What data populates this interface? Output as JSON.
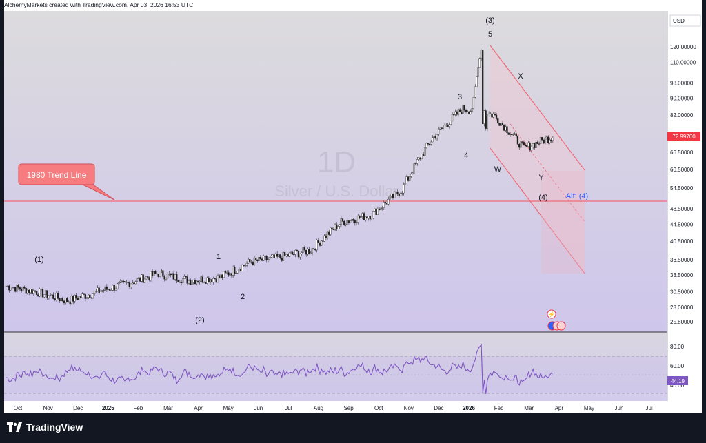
{
  "header": {
    "credit": "AlchemyMarkets created with TradingView.com, Apr 03, 2026 16:53 UTC"
  },
  "watermark": {
    "big": "1D",
    "sub": "Silver / U.S. Dollar"
  },
  "currency": "USD",
  "price_label": {
    "value": "72.99700",
    "color": "#f23645"
  },
  "rsi_label": {
    "value": "44.19",
    "color": "#7e57c2"
  },
  "logo": {
    "text": "TradingView"
  },
  "callout": {
    "text": "1980 Trend Line",
    "color": "#f77c80"
  },
  "icons": [
    "flash-icon",
    "us-flag-icon"
  ],
  "chart_data": {
    "type": "candlestick",
    "timeframe": "1D",
    "symbol": "Silver / U.S. Dollar",
    "y_scale": "log",
    "price_ticks": [
      "120.00000",
      "110.00000",
      "98.00000",
      "90.00000",
      "82.00000",
      "72.99700",
      "66.50000",
      "60.50000",
      "54.50000",
      "48.50000",
      "44.50000",
      "40.50000",
      "36.50000",
      "33.50000",
      "30.50000",
      "28.00000",
      "25.80000"
    ],
    "x_ticks": [
      "Oct",
      "Nov",
      "Dec",
      "2025",
      "Feb",
      "Mar",
      "Apr",
      "May",
      "Jun",
      "Jul",
      "Aug",
      "Sep",
      "Oct",
      "Nov",
      "Dec",
      "2026",
      "Feb",
      "Mar",
      "Apr",
      "May",
      "Jun",
      "Jul"
    ],
    "price_path_monthly": [
      {
        "month": "2024-10",
        "close": 31.5
      },
      {
        "month": "2024-11",
        "close": 30.5
      },
      {
        "month": "2024-12",
        "close": 29.0
      },
      {
        "month": "2025-01",
        "close": 30.5
      },
      {
        "month": "2025-02",
        "close": 32.0
      },
      {
        "month": "2025-03",
        "close": 33.8
      },
      {
        "month": "2025-04",
        "close": 32.5
      },
      {
        "month": "2025-05",
        "close": 33.0
      },
      {
        "month": "2025-06",
        "close": 36.0
      },
      {
        "month": "2025-07",
        "close": 37.0
      },
      {
        "month": "2025-08",
        "close": 38.5
      },
      {
        "month": "2025-09",
        "close": 45.0
      },
      {
        "month": "2025-10",
        "close": 47.0
      },
      {
        "month": "2025-11",
        "close": 54.0
      },
      {
        "month": "2025-12",
        "close": 72.0
      },
      {
        "month": "2026-01",
        "close": 85.0
      },
      {
        "month": "2026-02",
        "close": 82.0
      },
      {
        "month": "2026-03",
        "close": 68.0
      },
      {
        "month": "2026-04",
        "close": 73.0
      }
    ],
    "wave_labels": [
      "(1)",
      "(2)",
      "1",
      "2",
      "3",
      "4",
      "5",
      "(3)",
      "W",
      "X",
      "Y",
      "(4)",
      "Alt: (4)"
    ],
    "trend_line": {
      "label": "1980 Trend Line",
      "price": 50.0
    },
    "rsi": {
      "ticks": [
        "80.00",
        "60.00",
        "40.00"
      ],
      "levels": [
        70,
        50,
        30
      ],
      "last": 44.19
    }
  }
}
